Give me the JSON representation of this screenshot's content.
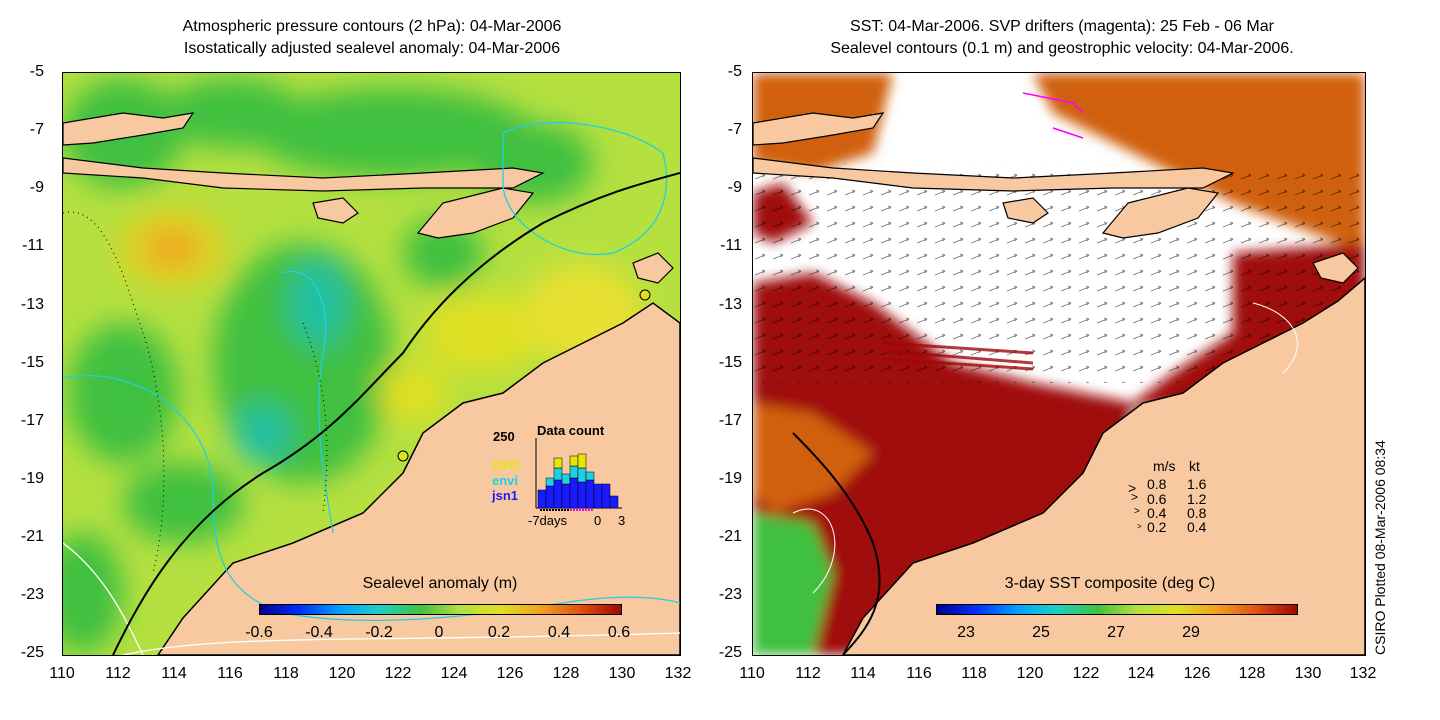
{
  "left_panel": {
    "title_line1": "Atmospheric pressure contours (2 hPa): 04-Mar-2006",
    "title_line2": "Isostatically adjusted sealevel anomaly: 04-Mar-2006",
    "colorbar_title": "Sealevel anomaly (m)",
    "colorbar_ticks": [
      "-0.6",
      "-0.4",
      "-0.2",
      "0",
      "0.2",
      "0.4",
      "0.6"
    ],
    "inset": {
      "title": "Data count",
      "ymax_label": "250",
      "satellites": [
        {
          "name": "GFO",
          "color": "#e6e600"
        },
        {
          "name": "envi",
          "color": "#20d0e0"
        },
        {
          "name": "jsn1",
          "color": "#1a1aff"
        }
      ],
      "xaxis_left": "-7days",
      "xaxis_zero": "0",
      "xaxis_right": "3"
    }
  },
  "right_panel": {
    "title_line1": "SST: 04-Mar-2006. SVP drifters (magenta): 25 Feb - 06 Mar",
    "title_line2": "Sealevel contours (0.1 m) and geostrophic velocity: 04-Mar-2006.",
    "colorbar_title": "3-day SST composite (deg C)",
    "colorbar_ticks": [
      "23",
      "25",
      "27",
      "29"
    ],
    "velocity_legend": {
      "header_ms": "m/s",
      "header_kt": "kt",
      "rows": [
        {
          "ms": "0.8",
          "kt": "1.6"
        },
        {
          "ms": "0.6",
          "kt": "1.2"
        },
        {
          "ms": "0.4",
          "kt": "0.8"
        },
        {
          "ms": "0.2",
          "kt": "0.4"
        }
      ]
    }
  },
  "axes": {
    "y_ticks": [
      "-5",
      "-7",
      "-9",
      "-11",
      "-13",
      "-15",
      "-17",
      "-19",
      "-21",
      "-23",
      "-25"
    ],
    "x_ticks": [
      "110",
      "112",
      "114",
      "116",
      "118",
      "120",
      "122",
      "124",
      "126",
      "128",
      "130",
      "132"
    ]
  },
  "credit": "CSIRO Plotted 08-Mar-2006 08:34",
  "colors": {
    "land": "#f8c8a0",
    "anomaly_bg": "#b4e040",
    "anomaly_green": "#40c040",
    "anomaly_teal": "#20c0a0",
    "anomaly_yellow": "#e0e020",
    "anomaly_orange": "#f0a020",
    "sst_hot": "#a00808",
    "sst_warm": "#d06010",
    "cloud": "#ffffff",
    "contour_cyan": "#20d0e0",
    "drifter": "#ff00ff"
  }
}
